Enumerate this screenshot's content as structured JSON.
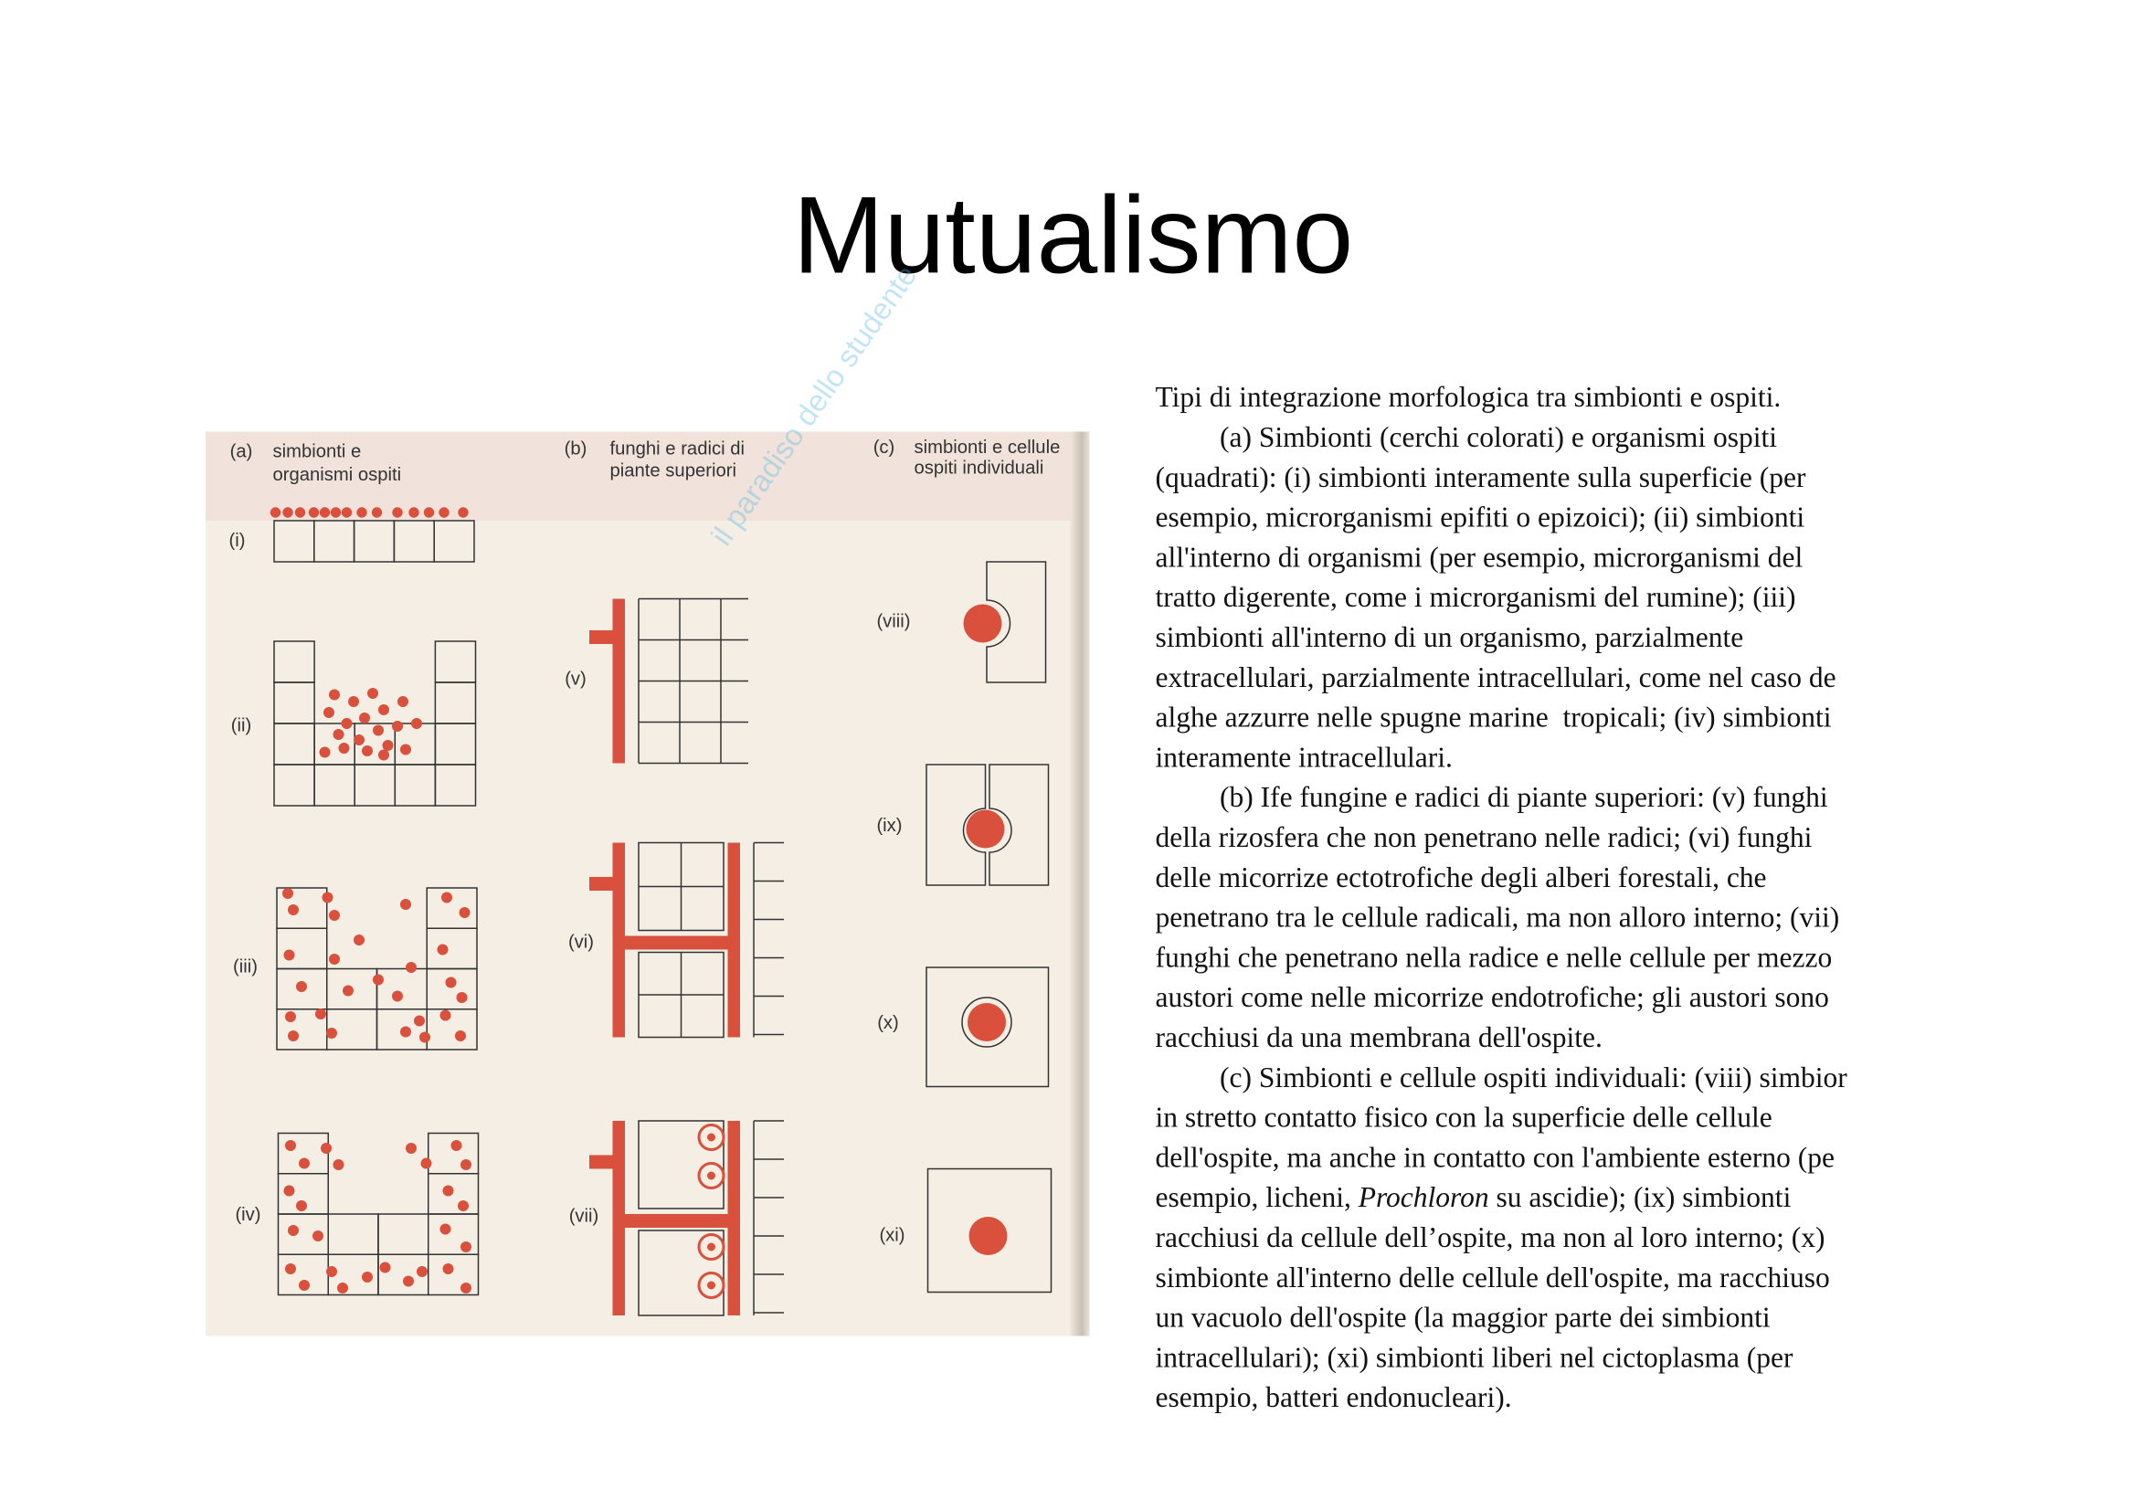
{
  "header": {
    "title": "Mutualismo"
  },
  "watermark": "il paradiso dello studente",
  "figure": {
    "columns": [
      {
        "letter": "(a)",
        "heading": [
          "simbionti e",
          "organismi ospiti"
        ]
      },
      {
        "letter": "(b)",
        "heading": [
          "funghi e radici di",
          "piante superiori"
        ]
      },
      {
        "letter": "(c)",
        "heading": [
          "simbionti e cellule",
          "ospiti individuali"
        ]
      }
    ],
    "panels": [
      "(i)",
      "(ii)",
      "(iii)",
      "(iv)",
      "(v)",
      "(vi)",
      "(vii)",
      "(viii)",
      "(ix)",
      "(x)",
      "(xi)"
    ]
  },
  "body": {
    "paragraphs": [
      [
        "Tipi di integrazione morfologica tra simbionti e ospiti."
      ],
      [
        "(a) Simbionti (cerchi colorati) e organismi ospiti",
        "(quadrati): (i) simbionti interamente sulla superficie (per",
        "esempio, microrganismi epifiti o epizoici); (ii) simbionti",
        "all'interno di organismi (per esempio, microrganismi del",
        "tratto digerente, come i microrganismi del rumine); (iii)",
        "simbionti all'interno di un organismo, parzialmente",
        "extracellulari, parzialmente intracellulari, come nel caso de",
        "alghe azzurre nelle spugne marine  tropicali; (iv) simbionti",
        "interamente intracellulari."
      ],
      [
        "(b) Ife fungine e radici di piante superiori: (v) funghi",
        "della rizosfera che non penetrano nelle radici; (vi) funghi",
        "delle micorrize ectotrofiche degli alberi forestali, che",
        "penetrano tra le cellule radicali, ma non alloro interno; (vii)",
        "funghi che penetrano nella radice e nelle cellule per mezzo",
        "austori come nelle micorrize endotrofiche; gli austori sono",
        "racchiusi da una membrana dell'ospite."
      ],
      [
        "(c) Simbionti e cellule ospiti individuali: (viii) simbior",
        "in stretto contatto fisico con la superficie delle cellule",
        "dell'ospite, ma anche in contatto con l'ambiente esterno (pe",
        [
          "esempio, licheni, ",
          "Prochloron",
          " su ascidie); (ix) simbionti"
        ],
        "racchiusi da cellule dell’ospite, ma non al loro interno; (x)",
        "simbionte all'interno delle cellule dell'ospite, ma racchiuso",
        "un vacuolo dell'ospite (la maggior parte dei simbionti",
        "intracellulari); (xi) simbionti liberi nel cictoplasma (per",
        "esempio, batteri endonucleari)."
      ]
    ]
  }
}
